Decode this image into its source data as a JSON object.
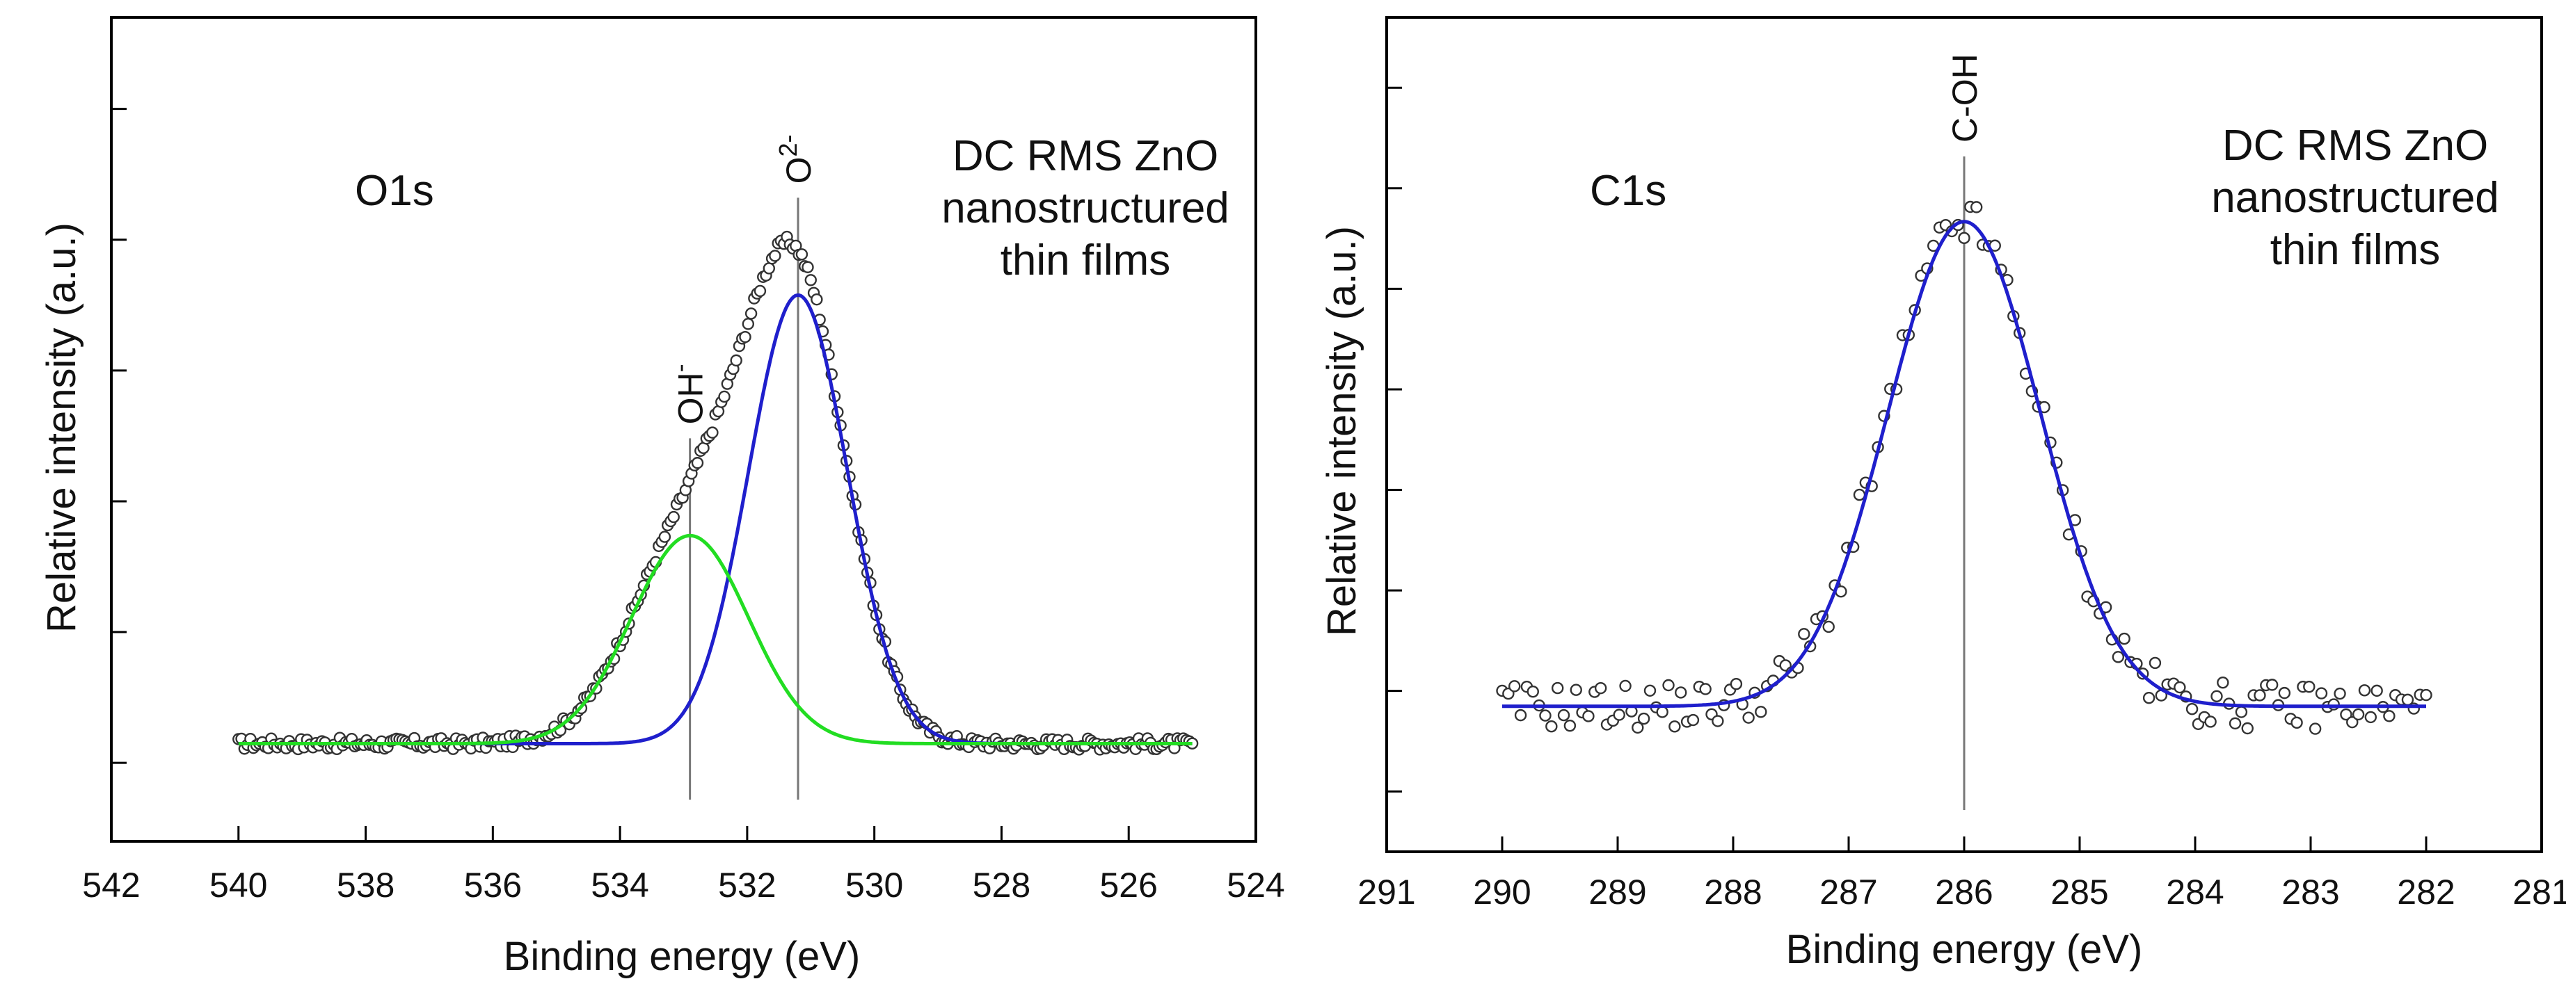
{
  "chart_data": [
    {
      "type": "scatter",
      "id": "left",
      "title": "O1s",
      "xlabel": "Binding energy (eV)",
      "ylabel": "Relative intensity (a.u.)",
      "xlim": [
        542,
        524
      ],
      "ylim": [
        0,
        100
      ],
      "x_ticks": [
        542,
        540,
        538,
        536,
        534,
        532,
        530,
        528,
        526,
        524
      ],
      "y_tick_count": 6,
      "grid": false,
      "annotation_lines": [
        "DC RMS ZnO",
        "nanostructured",
        "thin films"
      ],
      "data_range": [
        540,
        525
      ],
      "baseline": 7,
      "noise": 0.9,
      "series": [
        {
          "name": "O2-",
          "label_main": "O",
          "label_sup": "2-",
          "center": 531.2,
          "amplitude": 69,
          "sigma": 0.78,
          "color": "#1f1fcc"
        },
        {
          "name": "OH-",
          "label_main": "OH",
          "label_sup": "-",
          "center": 532.9,
          "amplitude": 32,
          "sigma": 0.92,
          "color": "#22dd22"
        }
      ],
      "peak_markers": [
        {
          "x": 531.2,
          "label": "O2-"
        },
        {
          "x": 532.9,
          "label": "OH-"
        }
      ]
    },
    {
      "type": "scatter",
      "id": "right",
      "title": "C1s",
      "xlabel": "Binding energy (eV)",
      "ylabel": "Relative intensity (a.u.)",
      "xlim": [
        291,
        281
      ],
      "ylim": [
        0,
        100
      ],
      "x_ticks": [
        291,
        290,
        289,
        288,
        287,
        286,
        285,
        284,
        283,
        282,
        281
      ],
      "y_tick_count": 8,
      "grid": false,
      "annotation_lines": [
        "DC RMS ZnO",
        "nanostructured",
        "thin films"
      ],
      "data_range": [
        290,
        282
      ],
      "baseline": 13,
      "noise": 2.3,
      "series": [
        {
          "name": "C-OH",
          "label_main": "C-OH",
          "label_sup": "",
          "center": 286.0,
          "amplitude": 73,
          "sigma": 0.66,
          "color": "#1f1fcc"
        }
      ],
      "peak_markers": [
        {
          "x": 286.0,
          "label": "C-OH"
        }
      ]
    }
  ]
}
